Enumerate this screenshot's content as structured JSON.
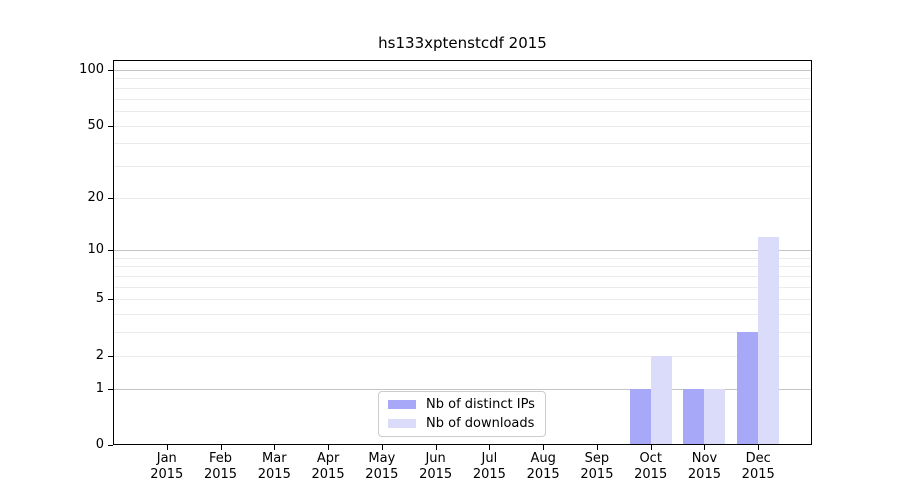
{
  "chart_data": {
    "type": "bar",
    "title": "hs133xptenstcdf 2015",
    "categories": [
      "Jan 2015",
      "Feb 2015",
      "Mar 2015",
      "Apr 2015",
      "May 2015",
      "Jun 2015",
      "Jul 2015",
      "Aug 2015",
      "Sep 2015",
      "Oct 2015",
      "Nov 2015",
      "Dec 2015"
    ],
    "series": [
      {
        "name": "Nb of distinct IPs",
        "color": "#a8a8f8",
        "values": [
          0,
          0,
          0,
          0,
          0,
          0,
          0,
          0,
          0,
          1,
          1,
          3
        ]
      },
      {
        "name": "Nb of downloads",
        "color": "#dbdbfa",
        "values": [
          0,
          0,
          0,
          0,
          0,
          0,
          0,
          0,
          0,
          2,
          1,
          12
        ]
      }
    ],
    "xlabel": "",
    "ylabel": "",
    "y_scale": "log10(1+y)",
    "ylim": [
      0,
      114
    ],
    "y_ticks": [
      0,
      1,
      2,
      5,
      10,
      20,
      50,
      100
    ],
    "y_major_gridlines": [
      1,
      10,
      100
    ],
    "y_minor_gridlines": [
      2,
      3,
      4,
      5,
      6,
      7,
      8,
      9,
      20,
      30,
      40,
      50,
      60,
      70,
      80,
      90
    ],
    "grid": "horizontal",
    "legend_position": "inside-bottom-center"
  },
  "colors": {
    "background": "#ffffff",
    "frame": "#000000",
    "major_grid": "#c4c4c4",
    "minor_grid": "#ebebeb",
    "legend_border": "#cccccc"
  }
}
